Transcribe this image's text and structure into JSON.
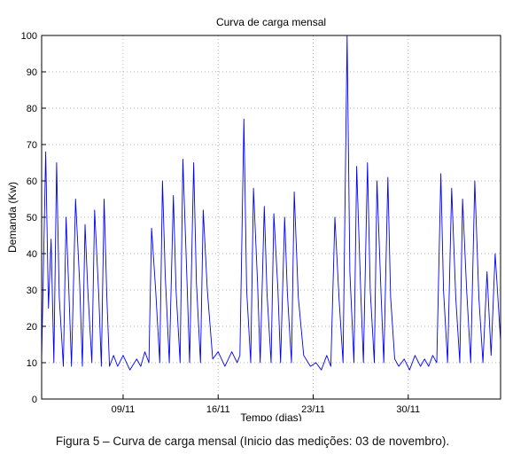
{
  "chart_data": {
    "type": "line",
    "title": "Curva de carga mensal",
    "xlabel": "Tempo (dias)",
    "ylabel": "Demanda (Kw)",
    "xlim": [
      3.0,
      36.8
    ],
    "ylim": [
      0,
      100
    ],
    "x_unit": "day of month (November)",
    "x_ticks": [
      {
        "value": 9,
        "label": "09/11"
      },
      {
        "value": 16,
        "label": "16/11"
      },
      {
        "value": 23,
        "label": "23/11"
      },
      {
        "value": 30,
        "label": "30/11"
      }
    ],
    "y_ticks": [
      0,
      10,
      20,
      30,
      40,
      50,
      60,
      70,
      80,
      90,
      100
    ],
    "grid": true,
    "series": [
      {
        "color": "#0000ff",
        "x": [
          3.0,
          3.3,
          3.5,
          3.7,
          3.9,
          4.1,
          4.3,
          4.6,
          4.8,
          5.0,
          5.2,
          5.5,
          5.8,
          6.0,
          6.2,
          6.4,
          6.7,
          6.9,
          7.2,
          7.4,
          7.6,
          7.8,
          8.0,
          8.3,
          8.6,
          9.0,
          9.5,
          10.0,
          10.3,
          10.6,
          10.9,
          11.1,
          11.4,
          11.7,
          11.9,
          12.1,
          12.4,
          12.7,
          12.9,
          13.2,
          13.4,
          13.7,
          13.9,
          14.2,
          14.4,
          14.7,
          14.9,
          15.2,
          15.6,
          16.0,
          16.5,
          17.0,
          17.4,
          17.6,
          17.9,
          18.1,
          18.4,
          18.6,
          18.9,
          19.1,
          19.4,
          19.6,
          19.9,
          20.1,
          20.4,
          20.6,
          20.9,
          21.1,
          21.4,
          21.6,
          21.9,
          22.3,
          22.8,
          23.2,
          23.6,
          24.0,
          24.3,
          24.6,
          24.9,
          25.2,
          25.5,
          25.7,
          26.0,
          26.2,
          26.5,
          26.7,
          27.0,
          27.2,
          27.5,
          27.7,
          28.0,
          28.2,
          28.5,
          28.7,
          29.0,
          29.3,
          29.7,
          30.1,
          30.5,
          30.9,
          31.2,
          31.5,
          31.8,
          32.1,
          32.4,
          32.6,
          32.9,
          33.2,
          33.5,
          33.8,
          34.0,
          34.3,
          34.6,
          34.9,
          35.2,
          35.5,
          35.8,
          36.1,
          36.4,
          36.8
        ],
        "y": [
          11,
          68,
          25,
          44,
          10,
          65,
          28,
          9,
          50,
          30,
          9,
          55,
          32,
          9,
          48,
          30,
          10,
          52,
          29,
          9,
          55,
          28,
          9,
          12,
          9,
          12,
          8,
          11,
          9,
          13,
          10,
          47,
          30,
          10,
          60,
          34,
          10,
          56,
          30,
          10,
          66,
          33,
          10,
          65,
          32,
          10,
          52,
          30,
          11,
          13,
          9,
          13,
          10,
          12,
          77,
          30,
          10,
          58,
          32,
          10,
          53,
          29,
          10,
          51,
          30,
          10,
          50,
          29,
          10,
          57,
          28,
          12,
          9,
          10,
          8,
          12,
          9,
          50,
          28,
          10,
          100,
          35,
          10,
          64,
          30,
          10,
          65,
          30,
          10,
          60,
          29,
          10,
          61,
          28,
          11,
          9,
          11,
          8,
          12,
          9,
          11,
          9,
          12,
          10,
          62,
          30,
          10,
          58,
          28,
          10,
          55,
          30,
          10,
          60,
          28,
          10,
          35,
          12,
          40,
          16
        ]
      }
    ]
  },
  "caption": "Figura 5 – Curva de carga mensal (Inicio das medições: 03 de novembro)."
}
